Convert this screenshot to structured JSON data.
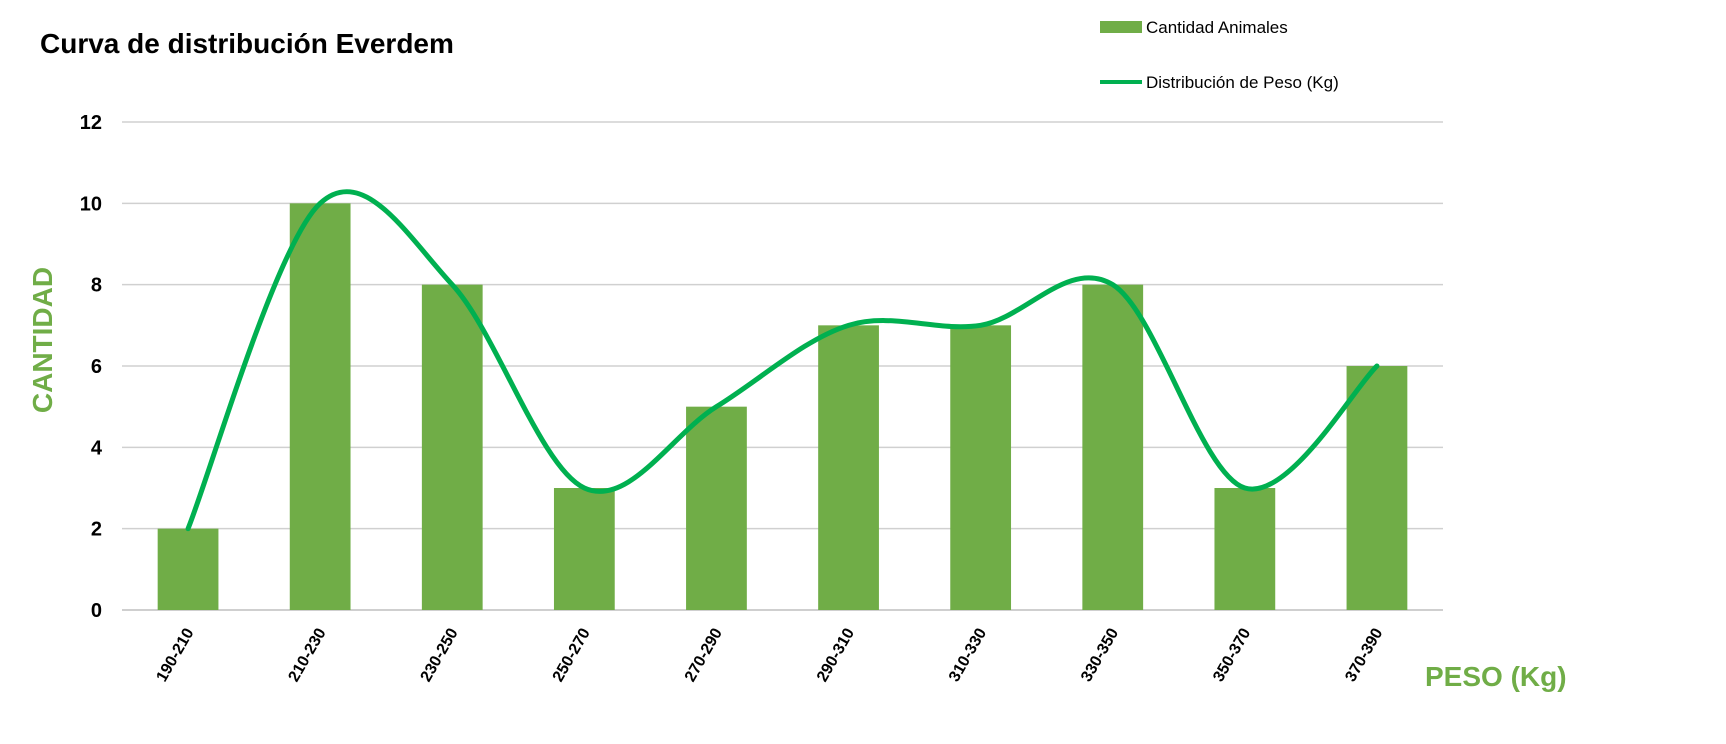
{
  "chart_data": {
    "type": "bar",
    "title": "Curva de distribución Everdem",
    "xlabel": "PESO (Kg)",
    "ylabel": "CANTIDAD",
    "categories": [
      "190-210",
      "210-230",
      "230-250",
      "250-270",
      "270-290",
      "290-310",
      "310-330",
      "330-350",
      "350-370",
      "370-390"
    ],
    "series": [
      {
        "name": "Cantidad Animales",
        "type": "bar",
        "color": "#70ad47",
        "values": [
          2,
          10,
          8,
          3,
          5,
          7,
          7,
          8,
          3,
          6
        ]
      },
      {
        "name": "Distribución de Peso (Kg)",
        "type": "line",
        "smooth": true,
        "color": "#00b050",
        "values": [
          2,
          10,
          8,
          3,
          5,
          7,
          7,
          8,
          3,
          6
        ]
      }
    ],
    "ylim": [
      0,
      12
    ],
    "yticks": [
      "0",
      "2",
      "4",
      "6",
      "8",
      "10",
      "12"
    ],
    "grid": true,
    "legend_position": "top-right",
    "axis_label_color": "#70ad47"
  }
}
